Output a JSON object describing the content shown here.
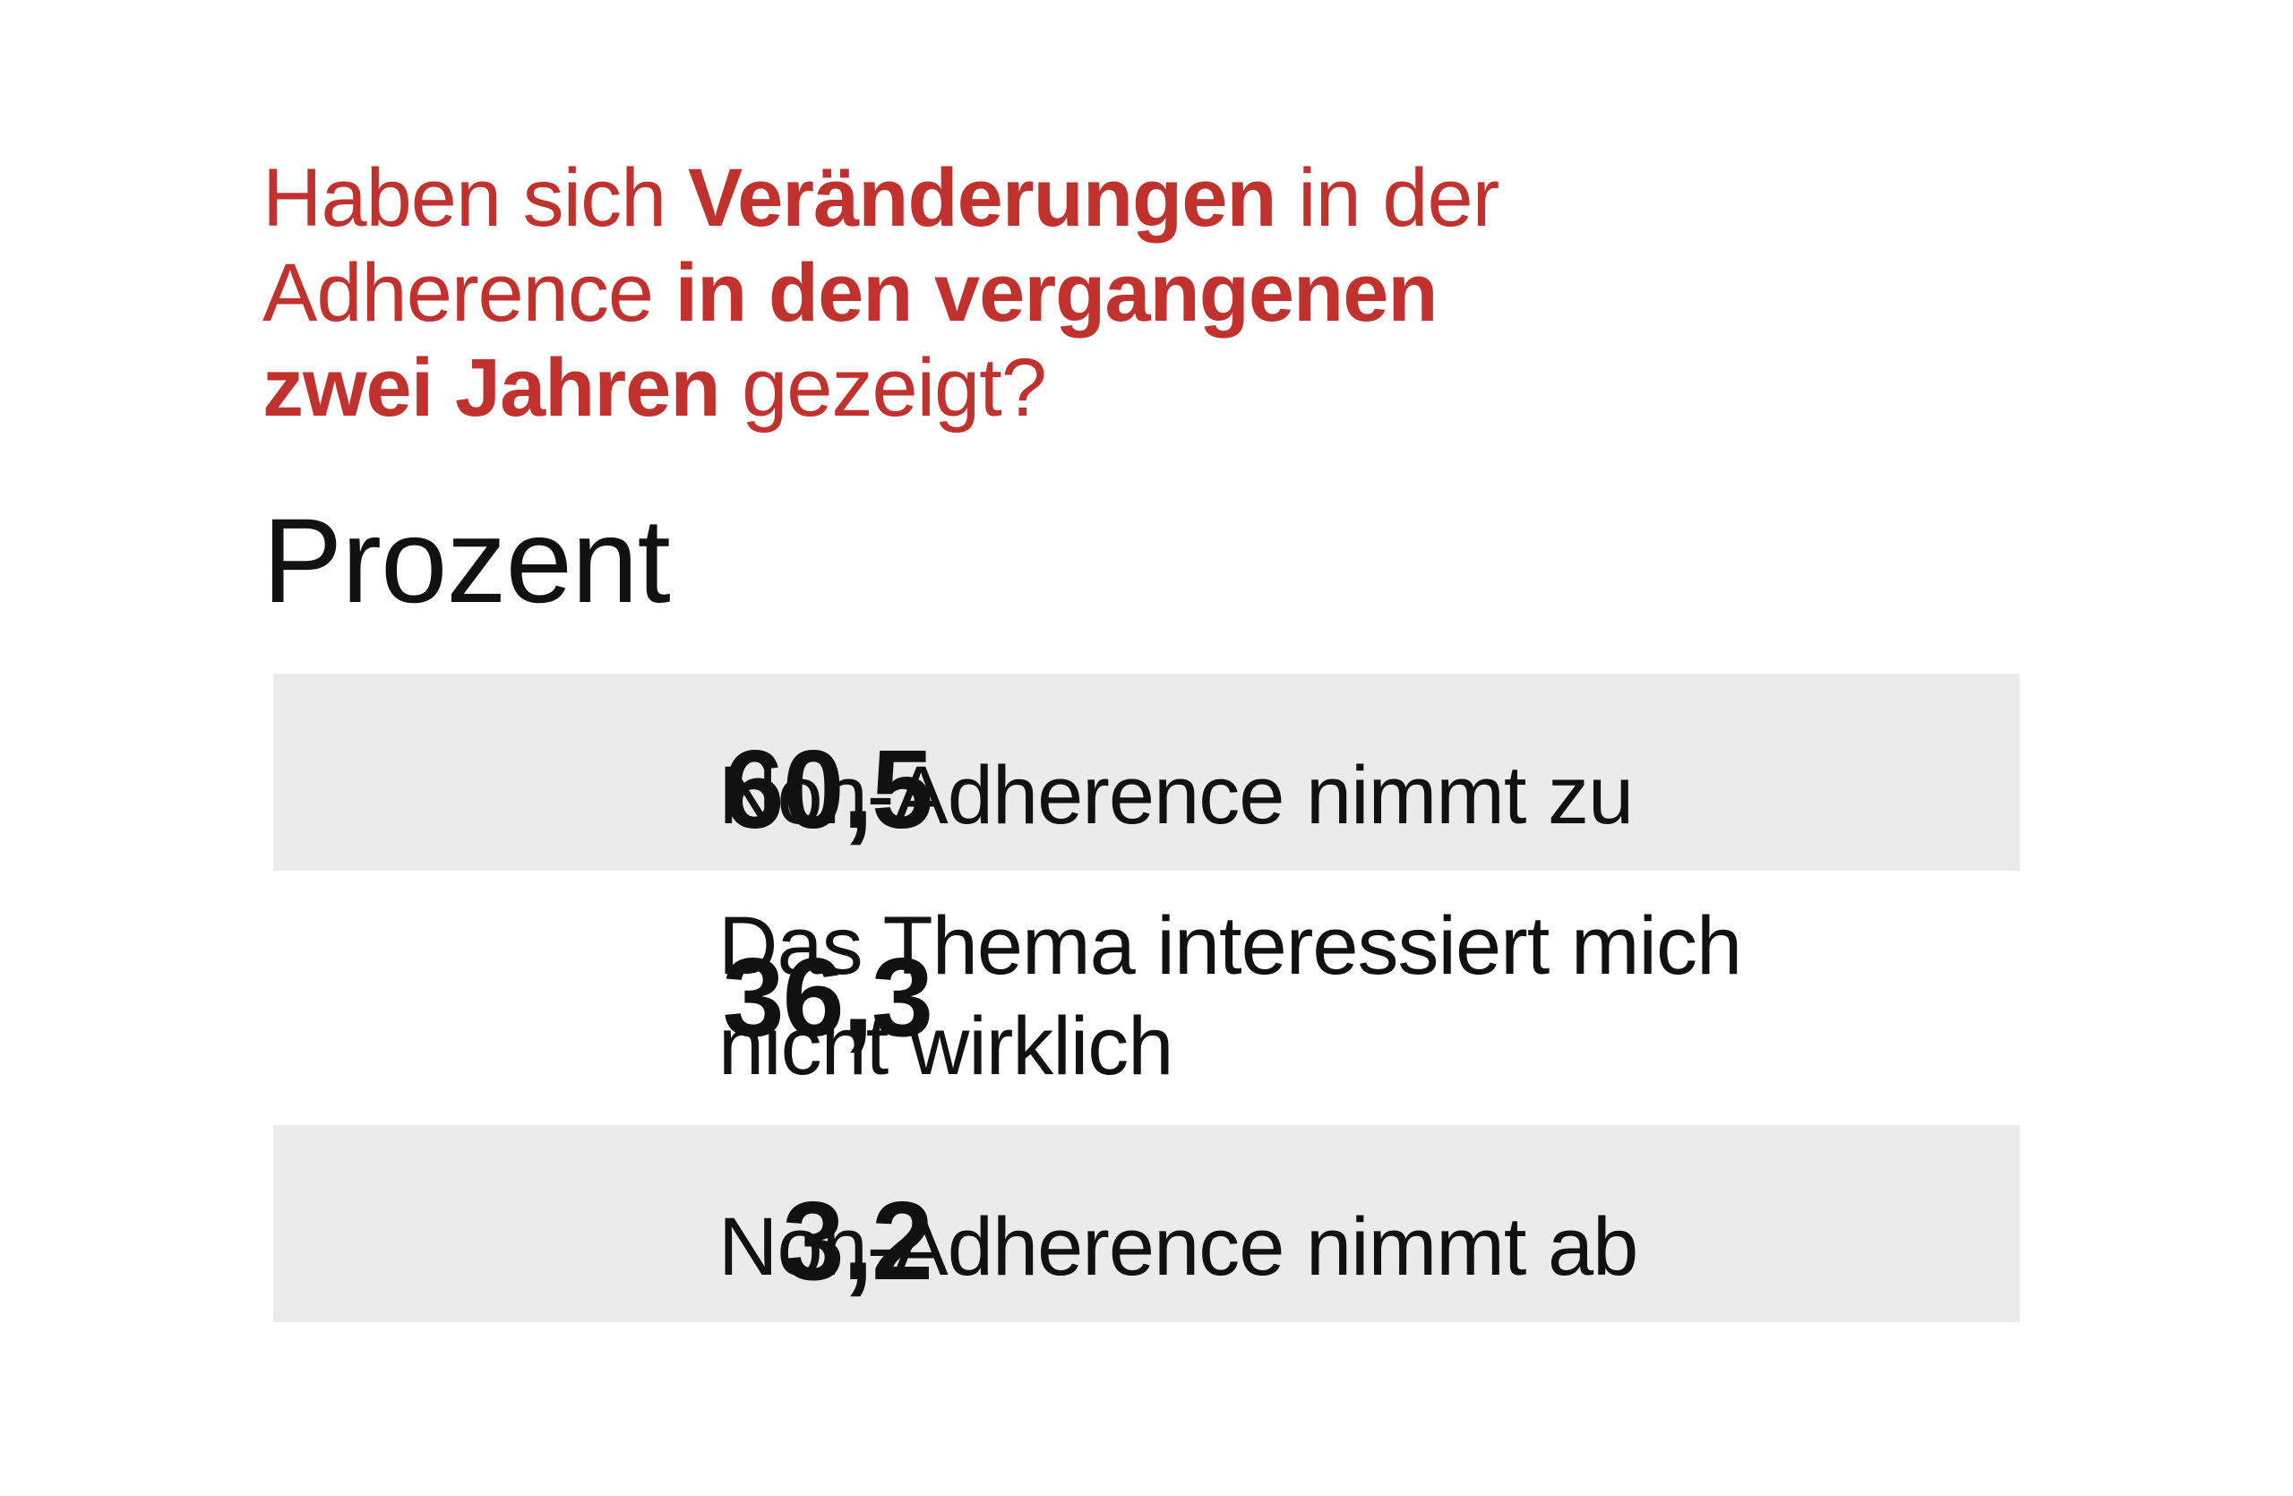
{
  "title": {
    "line1_a": "Haben sich ",
    "line1_b": "Veränderungen",
    "line1_c": " in der",
    "line2_a": "Adherence ",
    "line2_b": "in den vergangenen",
    "line3_a": "zwei Jahren",
    "line3_b": " gezeigt?"
  },
  "unit_label": "Prozent",
  "colors": {
    "title": "#c1312d",
    "row_shade": "#ebebeb",
    "text": "#111111"
  },
  "chart_data": {
    "type": "table",
    "title": "Haben sich Veränderungen in der Adherence in den vergangenen zwei Jahren gezeigt?",
    "unit": "Prozent",
    "rows": [
      {
        "value_text": "60,5",
        "value": 60.5,
        "label_lines": [
          "Non-Adherence nimmt zu"
        ]
      },
      {
        "value_text": "36,3",
        "value": 36.3,
        "label_lines": [
          "Das Thema interessiert mich",
          "nicht wirklich"
        ]
      },
      {
        "value_text": "3,2",
        "value": 3.2,
        "label_lines": [
          "Non-Adherence nimmt ab"
        ]
      }
    ]
  }
}
